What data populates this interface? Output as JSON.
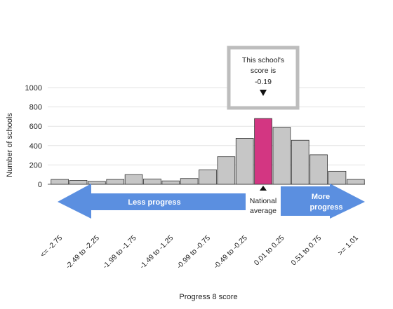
{
  "chart_data": {
    "type": "bar",
    "xlabel": "Progress 8 score",
    "ylabel": "Number of schools",
    "ylim": [
      0,
      1000
    ],
    "yticks": [
      0,
      200,
      400,
      600,
      800,
      1000
    ],
    "grid": true,
    "categories": [
      "<= -2.75",
      "",
      "-2.49 to -2.25",
      "",
      "-1.99 to -1.75",
      "",
      "-1.49 to -1.25",
      "",
      "-0.99 to -0.75",
      "",
      "-0.49 to -0.25",
      "",
      "0.01 to 0.25",
      "",
      "0.51 to 0.75",
      "",
      ">= 1.01"
    ],
    "values": [
      50,
      40,
      30,
      50,
      100,
      55,
      35,
      60,
      150,
      285,
      475,
      680,
      590,
      455,
      305,
      135,
      50
    ],
    "highlight_index": 11,
    "colors": {
      "bar": "#c6c6c6",
      "highlight": "#d33682",
      "arrow": "#5b8fe0",
      "callout_border": "#bdbdbd",
      "grid": "#e3e3e3"
    }
  },
  "callout": {
    "line1": "This school's",
    "line2": "score is",
    "line3": "-0.19"
  },
  "arrows": {
    "less_label": "Less progress",
    "more_label_1": "More",
    "more_label_2": "progress",
    "average_label_1": "National",
    "average_label_2": "average"
  }
}
